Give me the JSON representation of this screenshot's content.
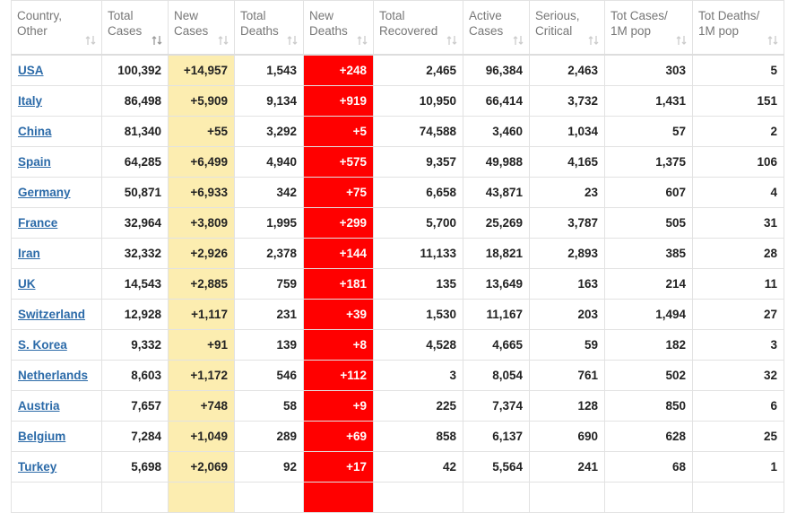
{
  "table": {
    "headers": [
      [
        "Country,",
        "Other"
      ],
      [
        "Total",
        "Cases"
      ],
      [
        "New",
        "Cases"
      ],
      [
        "Total",
        "Deaths"
      ],
      [
        "New",
        "Deaths"
      ],
      [
        "Total",
        "Recovered"
      ],
      [
        "Active",
        "Cases"
      ],
      [
        "Serious,",
        "Critical"
      ],
      [
        "Tot Cases/",
        "1M pop"
      ],
      [
        "Tot Deaths/",
        "1M pop"
      ]
    ],
    "rows": [
      [
        "USA",
        "100,392",
        "+14,957",
        "1,543",
        "+248",
        "2,465",
        "96,384",
        "2,463",
        "303",
        "5"
      ],
      [
        "Italy",
        "86,498",
        "+5,909",
        "9,134",
        "+919",
        "10,950",
        "66,414",
        "3,732",
        "1,431",
        "151"
      ],
      [
        "China",
        "81,340",
        "+55",
        "3,292",
        "+5",
        "74,588",
        "3,460",
        "1,034",
        "57",
        "2"
      ],
      [
        "Spain",
        "64,285",
        "+6,499",
        "4,940",
        "+575",
        "9,357",
        "49,988",
        "4,165",
        "1,375",
        "106"
      ],
      [
        "Germany",
        "50,871",
        "+6,933",
        "342",
        "+75",
        "6,658",
        "43,871",
        "23",
        "607",
        "4"
      ],
      [
        "France",
        "32,964",
        "+3,809",
        "1,995",
        "+299",
        "5,700",
        "25,269",
        "3,787",
        "505",
        "31"
      ],
      [
        "Iran",
        "32,332",
        "+2,926",
        "2,378",
        "+144",
        "11,133",
        "18,821",
        "2,893",
        "385",
        "28"
      ],
      [
        "UK",
        "14,543",
        "+2,885",
        "759",
        "+181",
        "135",
        "13,649",
        "163",
        "214",
        "11"
      ],
      [
        "Switzerland",
        "12,928",
        "+1,117",
        "231",
        "+39",
        "1,530",
        "11,167",
        "203",
        "1,494",
        "27"
      ],
      [
        "S. Korea",
        "9,332",
        "+91",
        "139",
        "+8",
        "4,528",
        "4,665",
        "59",
        "182",
        "3"
      ],
      [
        "Netherlands",
        "8,603",
        "+1,172",
        "546",
        "+112",
        "3",
        "8,054",
        "761",
        "502",
        "32"
      ],
      [
        "Austria",
        "7,657",
        "+748",
        "58",
        "+9",
        "225",
        "7,374",
        "128",
        "850",
        "6"
      ],
      [
        "Belgium",
        "7,284",
        "+1,049",
        "289",
        "+69",
        "858",
        "6,137",
        "690",
        "628",
        "25"
      ],
      [
        "Turkey",
        "5,698",
        "+2,069",
        "92",
        "+17",
        "42",
        "5,564",
        "241",
        "68",
        "1"
      ]
    ]
  }
}
